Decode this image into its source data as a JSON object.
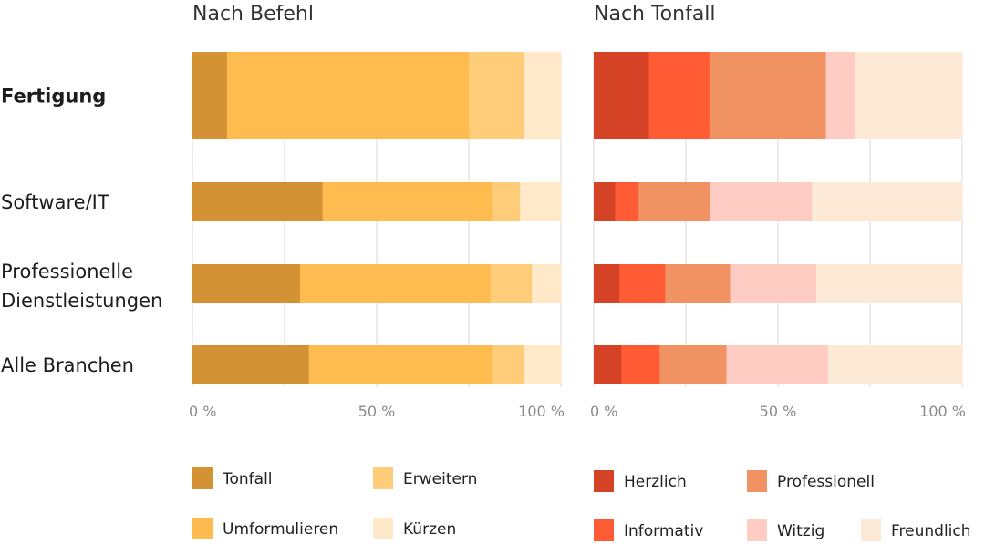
{
  "chart_data": [
    {
      "type": "bar",
      "orientation": "horizontal",
      "stacked": true,
      "title": "Nach Befehl",
      "categories": [
        "Fertigung",
        "Software/IT",
        "Professionelle Dienstleistungen",
        "Alle Branchen"
      ],
      "highlighted_category": "Fertigung",
      "xlim": [
        0,
        100
      ],
      "x_ticks": [
        "0 %",
        "50 %",
        "100 %"
      ],
      "grid": "vertical every 25 %",
      "legend_position": "bottom",
      "series": [
        {
          "name": "Tonfall",
          "color": "#D39334",
          "values": [
            9.4,
            35.3,
            29.2,
            31.6
          ]
        },
        {
          "name": "Umformulieren",
          "color": "#FEBB4F",
          "values": [
            65.6,
            46.2,
            51.7,
            49.9
          ]
        },
        {
          "name": "Erweitern",
          "color": "#FFCD7A",
          "values": [
            15.1,
            7.4,
            11.2,
            8.6
          ]
        },
        {
          "name": "Kürzen",
          "color": "#FFE9C8",
          "values": [
            9.9,
            11.1,
            7.9,
            9.9
          ]
        }
      ]
    },
    {
      "type": "bar",
      "orientation": "horizontal",
      "stacked": true,
      "title": "Nach Tonfall",
      "categories": [
        "Fertigung",
        "Software/IT",
        "Professionelle Dienstleistungen",
        "Alle Branchen"
      ],
      "xlim": [
        0,
        100
      ],
      "x_ticks": [
        "0 %",
        "50 %",
        "100 %"
      ],
      "grid": "vertical every 25 %",
      "legend_position": "bottom",
      "series": [
        {
          "name": "Herzlich",
          "color": "#D44325",
          "values": [
            15.0,
            5.8,
            7.0,
            7.5
          ]
        },
        {
          "name": "Informativ",
          "color": "#FF5C35",
          "values": [
            16.4,
            6.4,
            12.4,
            10.4
          ]
        },
        {
          "name": "Professionell",
          "color": "#F19262",
          "values": [
            31.6,
            19.3,
            17.6,
            18.1
          ]
        },
        {
          "name": "Witzig",
          "color": "#FECCC2",
          "values": [
            8.0,
            27.7,
            23.4,
            27.6
          ]
        },
        {
          "name": "Freundlich",
          "color": "#FCEAD7",
          "values": [
            29.0,
            40.8,
            39.6,
            36.4
          ]
        }
      ]
    }
  ]
}
